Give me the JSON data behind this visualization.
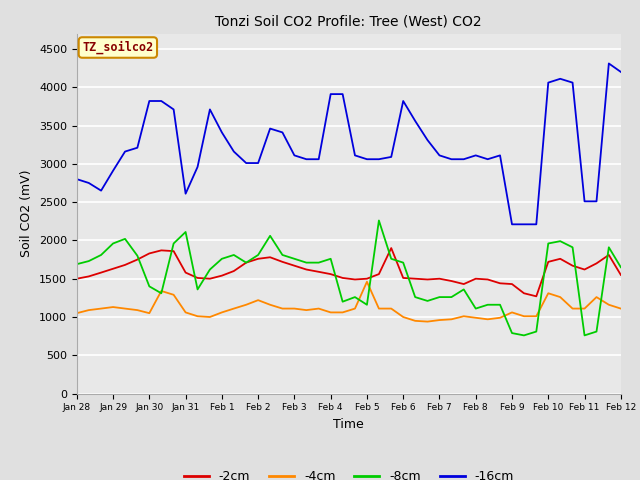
{
  "title": "Tonzi Soil CO2 Profile: Tree (West) CO2",
  "ylabel": "Soil CO2 (mV)",
  "xlabel": "Time",
  "ylim": [
    0,
    4700
  ],
  "yticks": [
    0,
    500,
    1000,
    1500,
    2000,
    2500,
    3000,
    3500,
    4000,
    4500
  ],
  "fig_bg_color": "#e0e0e0",
  "plot_bg_color": "#e8e8e8",
  "legend_label": "TZ_soilco2",
  "legend_box_facecolor": "#ffffcc",
  "legend_box_edgecolor": "#cc8800",
  "series_labels": [
    "-2cm",
    "-4cm",
    "-8cm",
    "-16cm"
  ],
  "series_colors": [
    "#dd0000",
    "#ff8800",
    "#00cc00",
    "#0000dd"
  ],
  "x_tick_positions": [
    0,
    1,
    2,
    3,
    4,
    5,
    6,
    7,
    8,
    9,
    10,
    11,
    12,
    13,
    14,
    15
  ],
  "x_labels": [
    "Jan 28",
    "Jan 29",
    "Jan 30",
    "Jan 31",
    "Feb 1",
    "Feb 2",
    "Feb 3",
    "Feb 4",
    "Feb 5",
    "Feb 6",
    "Feb 7",
    "Feb 8",
    "Feb 9",
    "Feb 10",
    "Feb 11",
    "Feb 12"
  ],
  "xlim": [
    0,
    15
  ],
  "t": [
    0,
    0.33,
    0.67,
    1.0,
    1.33,
    1.67,
    2.0,
    2.33,
    2.67,
    3.0,
    3.33,
    3.67,
    4.0,
    4.33,
    4.67,
    5.0,
    5.33,
    5.67,
    6.0,
    6.33,
    6.67,
    7.0,
    7.33,
    7.67,
    8.0,
    8.33,
    8.67,
    9.0,
    9.33,
    9.67,
    10.0,
    10.33,
    10.67,
    11.0,
    11.33,
    11.67,
    12.0,
    12.33,
    12.67,
    13.0,
    13.33,
    13.67,
    14.0,
    14.33,
    14.67,
    15.0
  ],
  "data_2cm": [
    1500,
    1530,
    1580,
    1630,
    1680,
    1750,
    1830,
    1870,
    1860,
    1580,
    1510,
    1500,
    1540,
    1600,
    1710,
    1760,
    1780,
    1720,
    1670,
    1620,
    1590,
    1560,
    1510,
    1490,
    1500,
    1560,
    1900,
    1510,
    1500,
    1490,
    1500,
    1470,
    1430,
    1500,
    1490,
    1440,
    1430,
    1310,
    1270,
    1720,
    1760,
    1670,
    1620,
    1700,
    1810,
    1550
  ],
  "data_4cm": [
    1050,
    1090,
    1110,
    1130,
    1110,
    1090,
    1050,
    1340,
    1290,
    1060,
    1010,
    1000,
    1060,
    1110,
    1160,
    1220,
    1160,
    1110,
    1110,
    1090,
    1110,
    1060,
    1060,
    1110,
    1460,
    1110,
    1110,
    1000,
    950,
    940,
    960,
    970,
    1010,
    990,
    970,
    990,
    1060,
    1010,
    1010,
    1310,
    1260,
    1110,
    1110,
    1260,
    1160,
    1110
  ],
  "data_8cm": [
    1690,
    1730,
    1810,
    1960,
    2020,
    1800,
    1400,
    1310,
    1960,
    2110,
    1360,
    1620,
    1760,
    1810,
    1710,
    1810,
    2060,
    1810,
    1760,
    1710,
    1710,
    1760,
    1200,
    1260,
    1160,
    2260,
    1760,
    1710,
    1260,
    1210,
    1260,
    1260,
    1360,
    1110,
    1160,
    1160,
    790,
    760,
    810,
    1960,
    1990,
    1910,
    760,
    810,
    1910,
    1650
  ],
  "data_16cm": [
    2800,
    2750,
    2650,
    2910,
    3160,
    3210,
    3820,
    3820,
    3710,
    2610,
    2960,
    3710,
    3410,
    3160,
    3010,
    3010,
    3460,
    3410,
    3110,
    3060,
    3060,
    3910,
    3910,
    3110,
    3060,
    3060,
    3090,
    3820,
    3560,
    3310,
    3110,
    3060,
    3060,
    3110,
    3060,
    3110,
    2210,
    2210,
    2210,
    4060,
    4110,
    4060,
    2510,
    2510,
    4310,
    4200
  ]
}
